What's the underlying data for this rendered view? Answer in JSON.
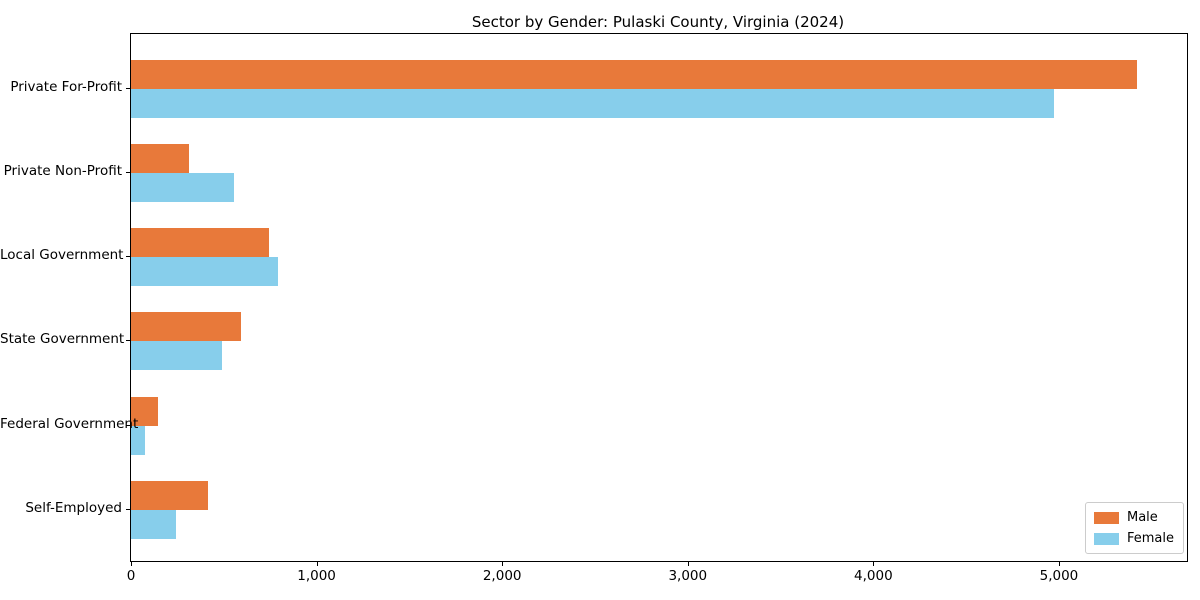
{
  "title": "Sector by Gender: Pulaski County, Virginia (2024)",
  "chart_data": {
    "type": "bar",
    "orientation": "horizontal",
    "title": "Sector by Gender: Pulaski County, Virginia (2024)",
    "categories": [
      "Private For-Profit",
      "Private Non-Profit",
      "Local Government",
      "State Government",
      "Federal Government",
      "Self-Employed"
    ],
    "series": [
      {
        "name": "Male",
        "color": "#E8793A",
        "values": [
          5420,
          315,
          745,
          595,
          145,
          415
        ]
      },
      {
        "name": "Female",
        "color": "#87CEEB",
        "values": [
          4975,
          555,
          790,
          490,
          75,
          245
        ]
      }
    ],
    "xlabel": "",
    "ylabel": "",
    "xlim": [
      0,
      5690
    ],
    "xticks": [
      0,
      1000,
      2000,
      3000,
      4000,
      5000
    ],
    "xtick_labels": [
      "0",
      "1,000",
      "2,000",
      "3,000",
      "4,000",
      "5,000"
    ],
    "legend_position": "lower right",
    "grid": false,
    "background_color": "#ffffff",
    "spine_color": "#000000"
  }
}
